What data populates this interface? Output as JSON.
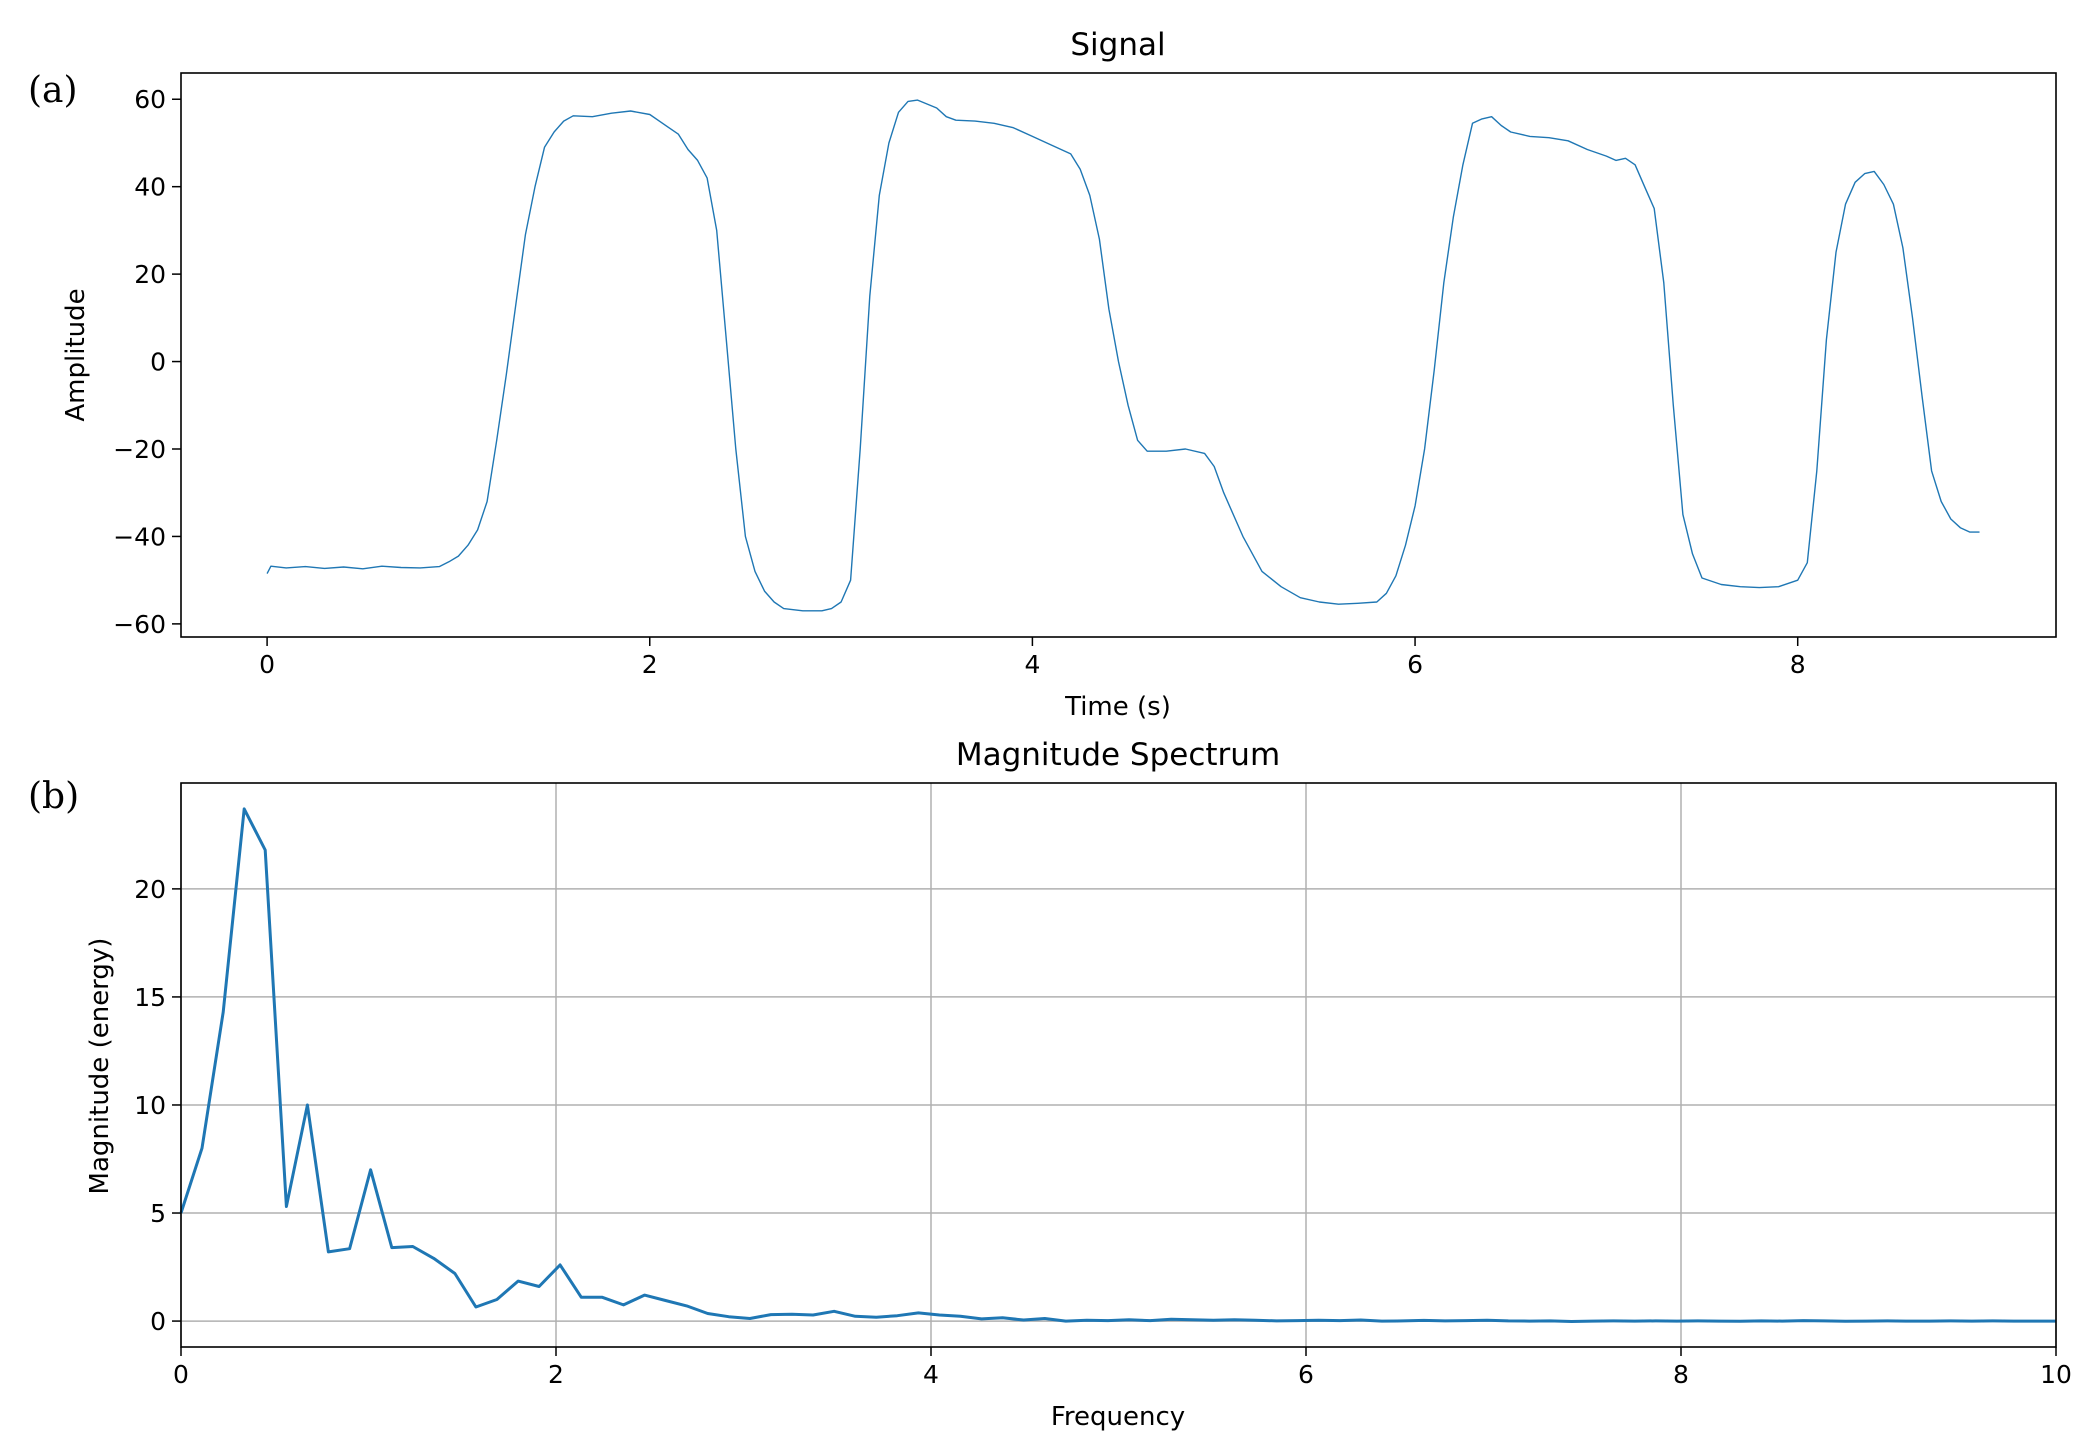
{
  "chart_data": [
    {
      "panel_label": "(a)",
      "type": "line",
      "title": "Signal",
      "xlabel": "Time (s)",
      "ylabel": "Amplitude",
      "xlim": [
        -0.45,
        9.35
      ],
      "ylim": [
        -63,
        66
      ],
      "xticks": [
        0,
        2,
        4,
        6,
        8
      ],
      "yticks": [
        -60,
        -40,
        -20,
        0,
        20,
        40,
        60
      ],
      "grid": false,
      "color": "#1f77b4",
      "series": [
        {
          "points": [
            [
              0.0,
              -48.5
            ],
            [
              0.02,
              -46.8
            ],
            [
              0.1,
              -47.2
            ],
            [
              0.2,
              -46.9
            ],
            [
              0.3,
              -47.3
            ],
            [
              0.4,
              -47.0
            ],
            [
              0.5,
              -47.4
            ],
            [
              0.6,
              -46.8
            ],
            [
              0.7,
              -47.1
            ],
            [
              0.8,
              -47.2
            ],
            [
              0.9,
              -46.9
            ],
            [
              0.95,
              -45.8
            ],
            [
              1.0,
              -44.5
            ],
            [
              1.05,
              -42.0
            ],
            [
              1.1,
              -38.5
            ],
            [
              1.15,
              -32.0
            ],
            [
              1.2,
              -18.0
            ],
            [
              1.25,
              -3.0
            ],
            [
              1.3,
              13.0
            ],
            [
              1.35,
              29.0
            ],
            [
              1.4,
              40.0
            ],
            [
              1.45,
              49.0
            ],
            [
              1.5,
              52.5
            ],
            [
              1.55,
              55.0
            ],
            [
              1.6,
              56.2
            ],
            [
              1.7,
              56.0
            ],
            [
              1.8,
              56.8
            ],
            [
              1.9,
              57.3
            ],
            [
              2.0,
              56.5
            ],
            [
              2.05,
              55.0
            ],
            [
              2.1,
              53.5
            ],
            [
              2.15,
              52.0
            ],
            [
              2.2,
              48.5
            ],
            [
              2.25,
              46.0
            ],
            [
              2.3,
              42.0
            ],
            [
              2.35,
              30.0
            ],
            [
              2.4,
              5.0
            ],
            [
              2.45,
              -20.0
            ],
            [
              2.5,
              -40.0
            ],
            [
              2.55,
              -48.0
            ],
            [
              2.6,
              -52.5
            ],
            [
              2.65,
              -55.0
            ],
            [
              2.7,
              -56.5
            ],
            [
              2.8,
              -57.0
            ],
            [
              2.9,
              -57.0
            ],
            [
              2.95,
              -56.5
            ],
            [
              3.0,
              -55.0
            ],
            [
              3.05,
              -50.0
            ],
            [
              3.1,
              -20.0
            ],
            [
              3.15,
              15.0
            ],
            [
              3.2,
              38.0
            ],
            [
              3.25,
              50.0
            ],
            [
              3.3,
              57.0
            ],
            [
              3.35,
              59.5
            ],
            [
              3.4,
              59.8
            ],
            [
              3.5,
              58.0
            ],
            [
              3.55,
              56.0
            ],
            [
              3.6,
              55.2
            ],
            [
              3.7,
              55.0
            ],
            [
              3.8,
              54.5
            ],
            [
              3.9,
              53.5
            ],
            [
              4.0,
              51.5
            ],
            [
              4.1,
              49.5
            ],
            [
              4.2,
              47.5
            ],
            [
              4.25,
              44.0
            ],
            [
              4.3,
              38.0
            ],
            [
              4.35,
              28.0
            ],
            [
              4.4,
              12.0
            ],
            [
              4.45,
              0.0
            ],
            [
              4.5,
              -10.0
            ],
            [
              4.55,
              -18.0
            ],
            [
              4.6,
              -20.5
            ],
            [
              4.7,
              -20.5
            ],
            [
              4.8,
              -20.0
            ],
            [
              4.9,
              -21.0
            ],
            [
              4.95,
              -24.0
            ],
            [
              5.0,
              -30.0
            ],
            [
              5.1,
              -40.0
            ],
            [
              5.2,
              -48.0
            ],
            [
              5.3,
              -51.5
            ],
            [
              5.4,
              -54.0
            ],
            [
              5.5,
              -55.0
            ],
            [
              5.6,
              -55.5
            ],
            [
              5.7,
              -55.3
            ],
            [
              5.8,
              -55.0
            ],
            [
              5.85,
              -53.0
            ],
            [
              5.9,
              -49.0
            ],
            [
              5.95,
              -42.0
            ],
            [
              6.0,
              -33.0
            ],
            [
              6.05,
              -20.0
            ],
            [
              6.1,
              -2.0
            ],
            [
              6.15,
              18.0
            ],
            [
              6.2,
              33.0
            ],
            [
              6.25,
              45.0
            ],
            [
              6.3,
              54.5
            ],
            [
              6.35,
              55.5
            ],
            [
              6.4,
              56.0
            ],
            [
              6.45,
              54.0
            ],
            [
              6.5,
              52.5
            ],
            [
              6.6,
              51.5
            ],
            [
              6.7,
              51.2
            ],
            [
              6.8,
              50.5
            ],
            [
              6.9,
              48.5
            ],
            [
              7.0,
              47.0
            ],
            [
              7.05,
              46.0
            ],
            [
              7.1,
              46.5
            ],
            [
              7.15,
              45.0
            ],
            [
              7.2,
              40.0
            ],
            [
              7.25,
              35.0
            ],
            [
              7.3,
              18.0
            ],
            [
              7.35,
              -10.0
            ],
            [
              7.4,
              -35.0
            ],
            [
              7.45,
              -44.0
            ],
            [
              7.5,
              -49.5
            ],
            [
              7.6,
              -51.0
            ],
            [
              7.7,
              -51.5
            ],
            [
              7.8,
              -51.7
            ],
            [
              7.9,
              -51.5
            ],
            [
              8.0,
              -50.0
            ],
            [
              8.05,
              -46.0
            ],
            [
              8.1,
              -25.0
            ],
            [
              8.15,
              5.0
            ],
            [
              8.2,
              25.0
            ],
            [
              8.25,
              36.0
            ],
            [
              8.3,
              41.0
            ],
            [
              8.35,
              43.0
            ],
            [
              8.4,
              43.5
            ],
            [
              8.45,
              40.5
            ],
            [
              8.5,
              36.0
            ],
            [
              8.55,
              26.0
            ],
            [
              8.6,
              10.0
            ],
            [
              8.65,
              -8.0
            ],
            [
              8.7,
              -25.0
            ],
            [
              8.75,
              -32.0
            ],
            [
              8.8,
              -36.0
            ],
            [
              8.85,
              -38.0
            ],
            [
              8.9,
              -39.0
            ],
            [
              8.95,
              -39.0
            ]
          ]
        }
      ]
    },
    {
      "panel_label": "(b)",
      "type": "line",
      "title": "Magnitude Spectrum",
      "xlabel": "Frequency",
      "ylabel": "Magnitude (energy)",
      "xlim": [
        0,
        10
      ],
      "ylim": [
        -1.2,
        24.9
      ],
      "xticks": [
        0,
        2,
        4,
        6,
        8,
        10
      ],
      "yticks": [
        0,
        5,
        10,
        15,
        20
      ],
      "grid": true,
      "color": "#1f77b4",
      "series": [
        {
          "points": [
            [
              0.0,
              5.0
            ],
            [
              0.112,
              8.0
            ],
            [
              0.225,
              14.3
            ],
            [
              0.337,
              23.7
            ],
            [
              0.449,
              21.8
            ],
            [
              0.562,
              5.3
            ],
            [
              0.674,
              10.0
            ],
            [
              0.786,
              3.2
            ],
            [
              0.899,
              3.35
            ],
            [
              1.011,
              7.0
            ],
            [
              1.124,
              3.4
            ],
            [
              1.236,
              3.45
            ],
            [
              1.348,
              2.9
            ],
            [
              1.461,
              2.2
            ],
            [
              1.573,
              0.65
            ],
            [
              1.685,
              1.0
            ],
            [
              1.798,
              1.85
            ],
            [
              1.91,
              1.6
            ],
            [
              2.022,
              2.6
            ],
            [
              2.135,
              1.1
            ],
            [
              2.247,
              1.1
            ],
            [
              2.36,
              0.75
            ],
            [
              2.472,
              1.2
            ],
            [
              2.584,
              0.95
            ],
            [
              2.697,
              0.7
            ],
            [
              2.809,
              0.35
            ],
            [
              2.921,
              0.2
            ],
            [
              3.034,
              0.12
            ],
            [
              3.146,
              0.3
            ],
            [
              3.258,
              0.32
            ],
            [
              3.371,
              0.28
            ],
            [
              3.483,
              0.45
            ],
            [
              3.596,
              0.22
            ],
            [
              3.708,
              0.18
            ],
            [
              3.82,
              0.25
            ],
            [
              3.933,
              0.38
            ],
            [
              4.045,
              0.28
            ],
            [
              4.157,
              0.22
            ],
            [
              4.27,
              0.1
            ],
            [
              4.382,
              0.15
            ],
            [
              4.494,
              0.05
            ],
            [
              4.607,
              0.12
            ],
            [
              4.719,
              0.0
            ],
            [
              4.831,
              0.04
            ],
            [
              4.944,
              0.02
            ],
            [
              5.056,
              0.06
            ],
            [
              5.169,
              0.02
            ],
            [
              5.281,
              0.08
            ],
            [
              5.393,
              0.06
            ],
            [
              5.506,
              0.04
            ],
            [
              5.618,
              0.06
            ],
            [
              5.73,
              0.04
            ],
            [
              5.843,
              0.01
            ],
            [
              5.955,
              0.02
            ],
            [
              6.067,
              0.04
            ],
            [
              6.18,
              0.02
            ],
            [
              6.292,
              0.05
            ],
            [
              6.404,
              0.0
            ],
            [
              6.517,
              0.01
            ],
            [
              6.629,
              0.03
            ],
            [
              6.742,
              0.01
            ],
            [
              6.854,
              0.02
            ],
            [
              6.966,
              0.04
            ],
            [
              7.079,
              0.01
            ],
            [
              7.191,
              0.0
            ],
            [
              7.303,
              0.01
            ],
            [
              7.416,
              -0.02
            ],
            [
              7.528,
              0.0
            ],
            [
              7.64,
              0.01
            ],
            [
              7.753,
              0.0
            ],
            [
              7.865,
              0.01
            ],
            [
              7.978,
              0.0
            ],
            [
              8.09,
              0.01
            ],
            [
              8.202,
              0.0
            ],
            [
              8.315,
              -0.01
            ],
            [
              8.427,
              0.01
            ],
            [
              8.539,
              0.0
            ],
            [
              8.652,
              0.02
            ],
            [
              8.764,
              0.01
            ],
            [
              8.876,
              -0.01
            ],
            [
              8.989,
              0.0
            ],
            [
              9.101,
              0.01
            ],
            [
              9.213,
              0.0
            ],
            [
              9.326,
              0.0
            ],
            [
              9.438,
              0.01
            ],
            [
              9.551,
              0.0
            ],
            [
              9.663,
              0.01
            ],
            [
              9.775,
              0.0
            ],
            [
              9.888,
              0.0
            ],
            [
              10.0,
              0.0
            ]
          ]
        }
      ]
    }
  ]
}
